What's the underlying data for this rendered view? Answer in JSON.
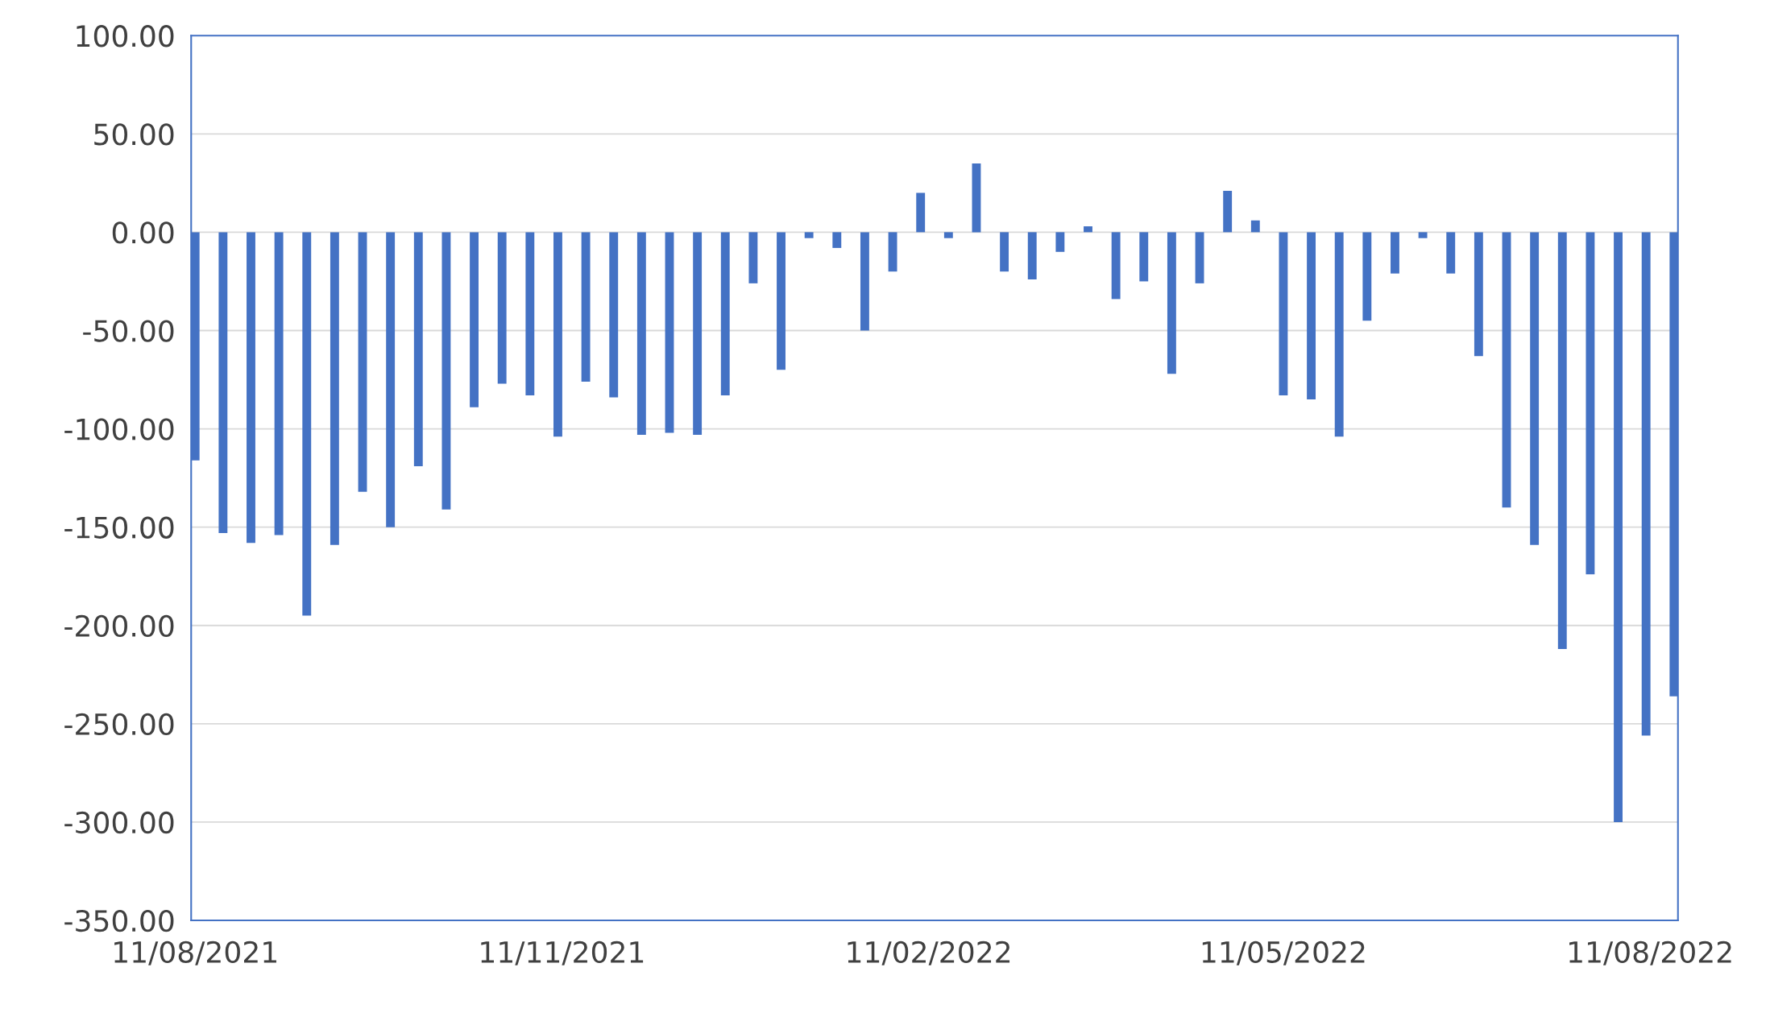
{
  "chart_data": {
    "type": "bar",
    "color": "#4472c4",
    "x": [
      "2021-08-11",
      "2021-08-18",
      "2021-08-25",
      "2021-09-01",
      "2021-09-08",
      "2021-09-15",
      "2021-09-22",
      "2021-09-29",
      "2021-10-06",
      "2021-10-13",
      "2021-10-20",
      "2021-10-27",
      "2021-11-03",
      "2021-11-10",
      "2021-11-17",
      "2021-11-24",
      "2021-12-01",
      "2021-12-08",
      "2021-12-15",
      "2021-12-22",
      "2021-12-29",
      "2022-01-05",
      "2022-01-12",
      "2022-01-19",
      "2022-01-26",
      "2022-02-02",
      "2022-02-09",
      "2022-02-16",
      "2022-02-23",
      "2022-03-02",
      "2022-03-09",
      "2022-03-16",
      "2022-03-23",
      "2022-03-30",
      "2022-04-06",
      "2022-04-13",
      "2022-04-20",
      "2022-04-27",
      "2022-05-04",
      "2022-05-11",
      "2022-05-18",
      "2022-05-25",
      "2022-06-01",
      "2022-06-08",
      "2022-06-15",
      "2022-06-22",
      "2022-06-29",
      "2022-07-06",
      "2022-07-13",
      "2022-07-20",
      "2022-07-27",
      "2022-08-03",
      "2022-08-10",
      "2022-08-17"
    ],
    "values": [
      -116,
      -153,
      -158,
      -154,
      -195,
      -159,
      -132,
      -150,
      -119,
      -141,
      -89,
      -77,
      -83,
      -104,
      -76,
      -84,
      -103,
      -102,
      -103,
      -83,
      -26,
      -70,
      -3,
      -8,
      -50,
      -20,
      20,
      -3,
      35,
      -20,
      -24,
      -10,
      3,
      -34,
      -25,
      -72,
      -26,
      21,
      6,
      -83,
      -85,
      -104,
      -45,
      -21,
      -3,
      -21,
      -63,
      -140,
      -159,
      -212,
      -174,
      -300,
      -256,
      -236
    ],
    "xlim": [
      "2021-08-10",
      "2022-08-18"
    ],
    "xticks": [
      {
        "value": "2021-08-11",
        "label": "11/08/2021"
      },
      {
        "value": "2021-11-11",
        "label": "11/11/2021"
      },
      {
        "value": "2022-02-11",
        "label": "11/02/2022"
      },
      {
        "value": "2022-05-11",
        "label": "11/05/2022"
      },
      {
        "value": "2022-08-11",
        "label": "11/08/2022"
      }
    ],
    "ylim": [
      -350,
      100
    ],
    "yticks": [
      {
        "value": 100,
        "label": "100.00"
      },
      {
        "value": 50,
        "label": "50.00"
      },
      {
        "value": 0,
        "label": "0.00"
      },
      {
        "value": -50,
        "label": "-50.00"
      },
      {
        "value": -100,
        "label": "-100.00"
      },
      {
        "value": -150,
        "label": "-150.00"
      },
      {
        "value": -200,
        "label": "-200.00"
      },
      {
        "value": -250,
        "label": "-250.00"
      },
      {
        "value": -300,
        "label": "-300.00"
      },
      {
        "value": -350,
        "label": "-350.00"
      }
    ],
    "grid": "y"
  }
}
